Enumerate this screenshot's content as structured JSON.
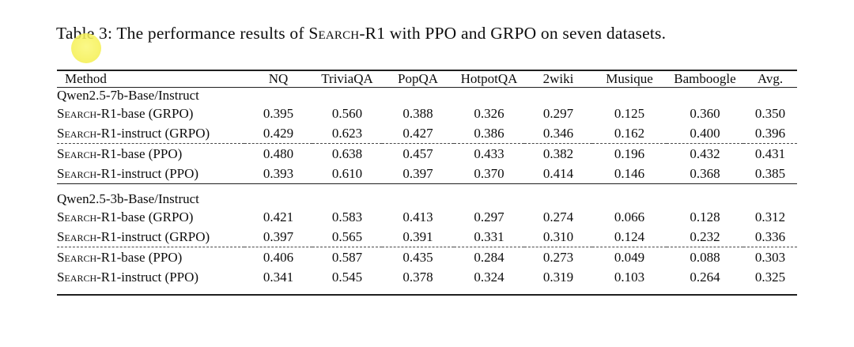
{
  "caption": {
    "prefix": "Table 3: The performance results of ",
    "method_name": "Search-R1",
    "suffix": " with PPO and GRPO on seven datasets."
  },
  "highlight": {
    "shape": "circle",
    "color": "#f5f055"
  },
  "table": {
    "columns": [
      "Method",
      "NQ",
      "TriviaQA",
      "PopQA",
      "HotpotQA",
      "2wiki",
      "Musique",
      "Bamboogle",
      "Avg."
    ],
    "sections": [
      {
        "header": "Qwen2.5-7b-Base/Instruct",
        "rows": [
          {
            "method": "Search-R1-base (GRPO)",
            "values": [
              "0.395",
              "0.560",
              "0.388",
              "0.326",
              "0.297",
              "0.125",
              "0.360",
              "0.350"
            ],
            "bold": [
              false,
              false,
              false,
              false,
              false,
              false,
              false,
              false
            ],
            "dashed_above": false
          },
          {
            "method": "Search-R1-instruct (GRPO)",
            "values": [
              "0.429",
              "0.623",
              "0.427",
              "0.386",
              "0.346",
              "0.162",
              "0.400",
              "0.396"
            ],
            "bold": [
              false,
              false,
              false,
              false,
              false,
              false,
              false,
              false
            ],
            "dashed_above": false
          },
          {
            "method": "Search-R1-base (PPO)",
            "values": [
              "0.480",
              "0.638",
              "0.457",
              "0.433",
              "0.382",
              "0.196",
              "0.432",
              "0.431"
            ],
            "bold": [
              true,
              true,
              true,
              true,
              false,
              true,
              true,
              true
            ],
            "dashed_above": true
          },
          {
            "method": "Search-R1-instruct (PPO)",
            "values": [
              "0.393",
              "0.610",
              "0.397",
              "0.370",
              "0.414",
              "0.146",
              "0.368",
              "0.385"
            ],
            "bold": [
              false,
              false,
              false,
              false,
              true,
              false,
              false,
              false
            ],
            "dashed_above": false
          }
        ]
      },
      {
        "header": "Qwen2.5-3b-Base/Instruct",
        "rows": [
          {
            "method": "Search-R1-base (GRPO)",
            "values": [
              "0.421",
              "0.583",
              "0.413",
              "0.297",
              "0.274",
              "0.066",
              "0.128",
              "0.312"
            ],
            "bold": [
              true,
              false,
              false,
              false,
              false,
              false,
              false,
              false
            ],
            "dashed_above": false
          },
          {
            "method": "Search-R1-instruct (GRPO)",
            "values": [
              "0.397",
              "0.565",
              "0.391",
              "0.331",
              "0.310",
              "0.124",
              "0.232",
              "0.336"
            ],
            "bold": [
              false,
              false,
              false,
              true,
              false,
              true,
              false,
              true
            ],
            "dashed_above": false
          },
          {
            "method": "Search-R1-base (PPO)",
            "values": [
              "0.406",
              "0.587",
              "0.435",
              "0.284",
              "0.273",
              "0.049",
              "0.088",
              "0.303"
            ],
            "bold": [
              false,
              true,
              true,
              false,
              false,
              false,
              false,
              false
            ],
            "dashed_above": true
          },
          {
            "method": "Search-R1-instruct (PPO)",
            "values": [
              "0.341",
              "0.545",
              "0.378",
              "0.324",
              "0.319",
              "0.103",
              "0.264",
              "0.325"
            ],
            "bold": [
              false,
              false,
              false,
              false,
              true,
              false,
              true,
              false
            ],
            "dashed_above": false
          }
        ]
      }
    ]
  }
}
